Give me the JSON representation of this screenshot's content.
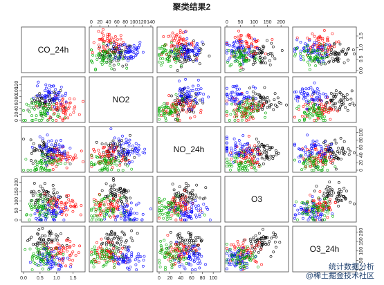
{
  "chart_data": {
    "type": "scatter",
    "title": "聚类结果2",
    "variables": [
      "CO_24h",
      "NO2",
      "NO_24h",
      "O3",
      "O3_24h"
    ],
    "axis_ticks": {
      "top": [
        {
          "col": 1,
          "ticks": [
            0,
            20,
            40,
            60,
            80,
            100,
            120,
            140
          ]
        },
        {
          "col": 3,
          "ticks": [
            0,
            50,
            100,
            150,
            200
          ]
        }
      ],
      "bottom": [
        {
          "col": 0,
          "ticks": [
            0.0,
            0.5,
            1.0,
            1.5
          ]
        },
        {
          "col": 2,
          "ticks": [
            0,
            20,
            40,
            60,
            80,
            100
          ]
        }
      ],
      "left": [
        {
          "row": 1,
          "ticks": [
            0,
            20,
            40,
            60,
            80,
            100,
            120
          ]
        },
        {
          "row": 3,
          "ticks": [
            0,
            50,
            100,
            150,
            200
          ]
        }
      ],
      "right": [
        {
          "row": 0,
          "ticks": [
            0.0,
            0.5,
            1.0,
            1.5
          ]
        },
        {
          "row": 2,
          "ticks": [
            0,
            20,
            40,
            60,
            80,
            100
          ]
        },
        {
          "row": 4,
          "ticks": [
            0,
            50,
            100,
            150,
            200
          ]
        }
      ]
    },
    "ranges": {
      "CO_24h": [
        0,
        1.8
      ],
      "NO2": [
        0,
        140
      ],
      "NO_24h": [
        0,
        110
      ],
      "O3": [
        0,
        220
      ],
      "O3_24h": [
        0,
        220
      ]
    },
    "clusters": [
      {
        "color": "#ff0000",
        "centers": {
          "CO_24h": 1.15,
          "NO2": 40,
          "NO_24h": 35,
          "O3": 70,
          "O3_24h": 90
        }
      },
      {
        "color": "#00aa00",
        "centers": {
          "CO_24h": 0.6,
          "NO2": 30,
          "NO_24h": 18,
          "O3": 55,
          "O3_24h": 70
        }
      },
      {
        "color": "#0000ff",
        "centers": {
          "CO_24h": 0.85,
          "NO2": 85,
          "NO_24h": 55,
          "O3": 40,
          "O3_24h": 60
        }
      },
      {
        "color": "#000000",
        "centers": {
          "CO_24h": 0.7,
          "NO2": 60,
          "NO_24h": 50,
          "O3": 130,
          "O3_24h": 150
        }
      }
    ],
    "grid": false,
    "legend": "none"
  },
  "watermark": {
    "line1": "统计数据分析",
    "line2": "@稀土掘金技术社区"
  }
}
